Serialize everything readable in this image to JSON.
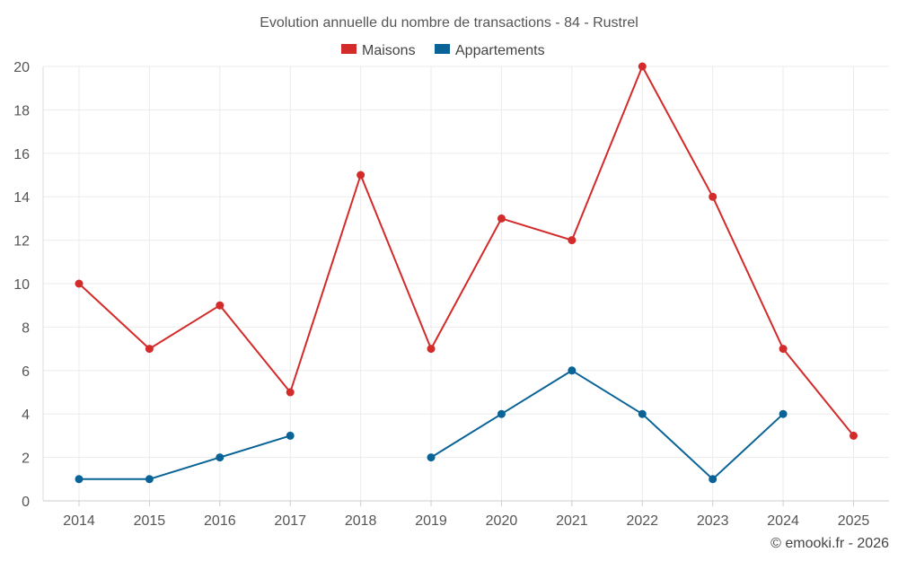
{
  "chart_data": {
    "type": "line",
    "title": "Evolution annuelle du nombre de transactions - 84 - Rustrel",
    "categories": [
      "2014",
      "2015",
      "2016",
      "2017",
      "2018",
      "2019",
      "2020",
      "2021",
      "2022",
      "2023",
      "2024",
      "2025"
    ],
    "series": [
      {
        "name": "Maisons",
        "color": "#d32a2a",
        "values": [
          10,
          7,
          9,
          5,
          15,
          7,
          13,
          12,
          20,
          14,
          7,
          3
        ]
      },
      {
        "name": "Appartements",
        "color": "#0a6396",
        "values": [
          1,
          1,
          2,
          3,
          null,
          2,
          4,
          6,
          4,
          1,
          4,
          null
        ]
      }
    ],
    "ylim": [
      0,
      20
    ],
    "yticks": [
      0,
      2,
      4,
      6,
      8,
      10,
      12,
      14,
      16,
      18,
      20
    ],
    "xlabel": "",
    "ylabel": "",
    "grid": true,
    "legend": "top-center"
  },
  "credit": "© emooki.fr - 2026"
}
